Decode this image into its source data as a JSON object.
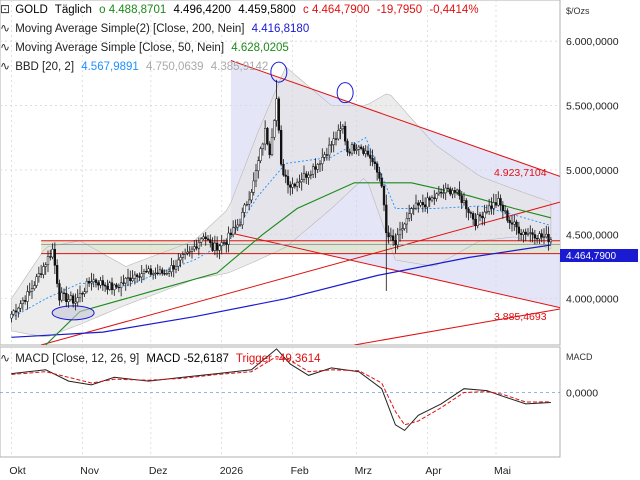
{
  "header": {
    "symbol": "GOLD",
    "interval": "Täglich",
    "o_label": "o",
    "o_value": "4.488,8701",
    "h_value": "4.496,4200",
    "l_value": "4.459,5800",
    "c_label": "c",
    "c_value": "4.464,7900",
    "change": "-19,7950",
    "change_pct": "-0,4414%"
  },
  "legend": [
    {
      "name": "Moving Average Simple(2) [Close, 200, Nein]",
      "value": "4.416,8180",
      "color": "#1a1ad0"
    },
    {
      "name": "Moving Average Simple [Close, 50, Nein]",
      "value": "4.628,0205",
      "color": "#1a8a1a"
    },
    {
      "name": "BBD [20, 2]",
      "value": "4.567,9891",
      "value2": "4.750,0639",
      "value3": "4.385,9142",
      "color": "#1e90ff",
      "color2": "#aaaaaa"
    }
  ],
  "macd_legend": {
    "name": "MACD [Close, 12, 26, 9]",
    "macd_label": "MACD",
    "macd_value": "-52,6187",
    "trigger_label": "Trigger",
    "trigger_value": "-49,3614"
  },
  "colors": {
    "candle": "#111111",
    "trend": "#e01010",
    "ma200": "#1a1ad0",
    "ma50": "#1a8a1a",
    "bb_mid": "#1e90ff",
    "bb_fill": "#e4e4e4",
    "channel_fill": "#dcdcf5",
    "zone_fill": "#dfe6d2",
    "positive": "#1a8a1a",
    "negative": "#e01010",
    "price_marker": "#1a1ad0"
  },
  "chart_data": [
    {
      "type": "candlestick",
      "unit_label": "$/Ozs",
      "y_ticks": [
        {
          "value": 4000000,
          "label": "4.000,0000"
        },
        {
          "value": 4500000,
          "label": "4.500,0000"
        },
        {
          "value": 5000000,
          "label": "5.000,0000"
        },
        {
          "value": 5500000,
          "label": "5.500,0000"
        },
        {
          "value": 6000000,
          "label": "6.000,0000"
        }
      ],
      "ylim": [
        3640000,
        6320000
      ],
      "x_labels": [
        "Okt",
        "Nov",
        "Dez",
        "2026",
        "Feb",
        "Mrz",
        "Apr",
        "Mai"
      ],
      "x_label_days": [
        0,
        31,
        61,
        92,
        123,
        151,
        182,
        212
      ],
      "xlim": [
        -5,
        240
      ],
      "last_price": "4.464,7900",
      "annotations": [
        {
          "label": "4.923,7104",
          "value": 4923710
        },
        {
          "label": "3.885,4693",
          "value": 3885469
        }
      ],
      "key_closes": [
        {
          "day": 0,
          "value": 3880000
        },
        {
          "day": 8,
          "value": 4050000
        },
        {
          "day": 14,
          "value": 4250000
        },
        {
          "day": 18,
          "value": 4380000
        },
        {
          "day": 21,
          "value": 4020000
        },
        {
          "day": 28,
          "value": 3980000
        },
        {
          "day": 35,
          "value": 4150000
        },
        {
          "day": 45,
          "value": 4080000
        },
        {
          "day": 55,
          "value": 4200000
        },
        {
          "day": 67,
          "value": 4200000
        },
        {
          "day": 78,
          "value": 4350000
        },
        {
          "day": 84,
          "value": 4500000
        },
        {
          "day": 88,
          "value": 4390000
        },
        {
          "day": 94,
          "value": 4450000
        },
        {
          "day": 100,
          "value": 4600000
        },
        {
          "day": 106,
          "value": 4900000
        },
        {
          "day": 111,
          "value": 5300000
        },
        {
          "day": 113,
          "value": 5150000
        },
        {
          "day": 116,
          "value": 5550000
        },
        {
          "day": 118,
          "value": 5020000
        },
        {
          "day": 122,
          "value": 4880000
        },
        {
          "day": 128,
          "value": 4950000
        },
        {
          "day": 134,
          "value": 5050000
        },
        {
          "day": 140,
          "value": 5200000
        },
        {
          "day": 145,
          "value": 5330000
        },
        {
          "day": 147,
          "value": 5150000
        },
        {
          "day": 152,
          "value": 5200000
        },
        {
          "day": 157,
          "value": 5100000
        },
        {
          "day": 162,
          "value": 4900000
        },
        {
          "day": 164,
          "value": 4500000
        },
        {
          "day": 168,
          "value": 4420000
        },
        {
          "day": 171,
          "value": 4550000
        },
        {
          "day": 176,
          "value": 4700000
        },
        {
          "day": 182,
          "value": 4750000
        },
        {
          "day": 188,
          "value": 4820000
        },
        {
          "day": 193,
          "value": 4850000
        },
        {
          "day": 198,
          "value": 4750000
        },
        {
          "day": 203,
          "value": 4600000
        },
        {
          "day": 208,
          "value": 4700000
        },
        {
          "day": 213,
          "value": 4750000
        },
        {
          "day": 218,
          "value": 4600000
        },
        {
          "day": 223,
          "value": 4520000
        },
        {
          "day": 228,
          "value": 4510000
        },
        {
          "day": 232,
          "value": 4480000
        },
        {
          "day": 236,
          "value": 4465000
        }
      ],
      "series": [
        {
          "name": "Moving Average Simple(2) [Close, 200, Nein]",
          "type": "line",
          "points": [
            [
              0,
              3700000
            ],
            [
              40,
              3740000
            ],
            [
              80,
              3860000
            ],
            [
              120,
              4000000
            ],
            [
              160,
              4180000
            ],
            [
              200,
              4320000
            ],
            [
              236,
              4417000
            ]
          ]
        },
        {
          "name": "Moving Average Simple [Close, 50, Nein]",
          "type": "line",
          "points": [
            [
              15,
              3640000
            ],
            [
              30,
              3900000
            ],
            [
              60,
              4050000
            ],
            [
              90,
              4200000
            ],
            [
              110,
              4500000
            ],
            [
              125,
              4700000
            ],
            [
              150,
              4900000
            ],
            [
              175,
              4900000
            ],
            [
              200,
              4800000
            ],
            [
              220,
              4700000
            ],
            [
              236,
              4628000
            ]
          ]
        },
        {
          "name": "BBD [20, 2]",
          "type": "band",
          "points": [
            [
              0,
              3850000
            ],
            [
              15,
              4000000
            ],
            [
              30,
              4120000
            ],
            [
              50,
              4100000
            ],
            [
              80,
              4300000
            ],
            [
              95,
              4450000
            ],
            [
              108,
              4800000
            ],
            [
              120,
              5050000
            ],
            [
              140,
              5100000
            ],
            [
              155,
              5250000
            ],
            [
              168,
              4700000
            ],
            [
              185,
              4700000
            ],
            [
              205,
              4720000
            ],
            [
              220,
              4650000
            ],
            [
              236,
              4568000
            ]
          ],
          "upper": [
            [
              0,
              4000000
            ],
            [
              15,
              4400000
            ],
            [
              30,
              4450000
            ],
            [
              50,
              4250000
            ],
            [
              80,
              4450000
            ],
            [
              95,
              4700000
            ],
            [
              108,
              5300000
            ],
            [
              120,
              5800000
            ],
            [
              140,
              5500000
            ],
            [
              155,
              5500000
            ],
            [
              165,
              5600000
            ],
            [
              185,
              5200000
            ],
            [
              205,
              4950000
            ],
            [
              220,
              4850000
            ],
            [
              236,
              4750000
            ]
          ],
          "lower": [
            [
              0,
              3750000
            ],
            [
              15,
              3700000
            ],
            [
              30,
              3800000
            ],
            [
              50,
              3950000
            ],
            [
              80,
              4150000
            ],
            [
              95,
              4200000
            ],
            [
              108,
              4300000
            ],
            [
              120,
              4400000
            ],
            [
              140,
              4700000
            ],
            [
              155,
              4950000
            ],
            [
              168,
              4300000
            ],
            [
              185,
              4250000
            ],
            [
              205,
              4450000
            ],
            [
              220,
              4480000
            ],
            [
              236,
              4386000
            ]
          ]
        }
      ]
    },
    {
      "type": "line",
      "unit_label": "MACD",
      "y_ticks": [
        {
          "value": 0,
          "label": "0,0000"
        }
      ],
      "ylim": [
        -340000,
        240000
      ],
      "series": [
        {
          "name": "MACD",
          "points": [
            [
              0,
              100000
            ],
            [
              15,
              120000
            ],
            [
              25,
              60000
            ],
            [
              35,
              40000
            ],
            [
              45,
              80000
            ],
            [
              60,
              60000
            ],
            [
              75,
              80000
            ],
            [
              90,
              100000
            ],
            [
              105,
              120000
            ],
            [
              116,
              230000
            ],
            [
              122,
              150000
            ],
            [
              130,
              90000
            ],
            [
              140,
              130000
            ],
            [
              152,
              110000
            ],
            [
              162,
              20000
            ],
            [
              168,
              -170000
            ],
            [
              172,
              -200000
            ],
            [
              178,
              -120000
            ],
            [
              188,
              -60000
            ],
            [
              198,
              20000
            ],
            [
              208,
              10000
            ],
            [
              215,
              -20000
            ],
            [
              225,
              -60000
            ],
            [
              236,
              -52619
            ]
          ]
        },
        {
          "name": "Trigger",
          "points": [
            [
              0,
              95000
            ],
            [
              15,
              110000
            ],
            [
              25,
              80000
            ],
            [
              35,
              50000
            ],
            [
              45,
              70000
            ],
            [
              60,
              65000
            ],
            [
              75,
              75000
            ],
            [
              90,
              95000
            ],
            [
              105,
              110000
            ],
            [
              116,
              190000
            ],
            [
              122,
              170000
            ],
            [
              130,
              110000
            ],
            [
              140,
              120000
            ],
            [
              152,
              115000
            ],
            [
              162,
              50000
            ],
            [
              168,
              -100000
            ],
            [
              172,
              -170000
            ],
            [
              178,
              -150000
            ],
            [
              188,
              -80000
            ],
            [
              198,
              0
            ],
            [
              208,
              5000
            ],
            [
              215,
              -10000
            ],
            [
              225,
              -50000
            ],
            [
              236,
              -49361
            ]
          ]
        }
      ]
    }
  ]
}
